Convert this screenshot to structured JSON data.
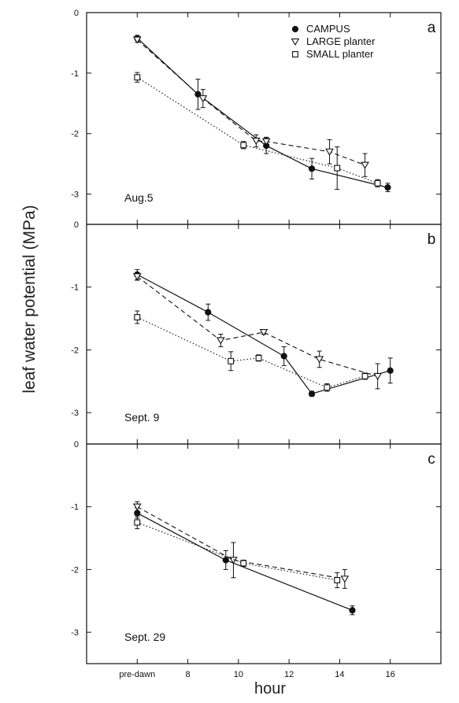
{
  "figure": {
    "ylabel": "leaf water potential (MPa)",
    "xlabel": "hour",
    "legend": [
      {
        "marker": "filled-circle",
        "label": "CAMPUS"
      },
      {
        "marker": "open-triangle-down",
        "label": "LARGE planter"
      },
      {
        "marker": "open-square",
        "label": "SMALL planter"
      }
    ],
    "x_tick_labels": [
      "pre-dawn",
      "8",
      "10",
      "12",
      "14",
      "16"
    ]
  },
  "chart_data": [
    {
      "type": "line",
      "panel_letter": "a",
      "annotation": "Aug.5",
      "xlim": [
        4,
        18
      ],
      "ylim": [
        -3.5,
        0
      ],
      "yticks": [
        0,
        -1,
        -2,
        -3
      ],
      "series": [
        {
          "name": "CAMPUS",
          "marker": "filled-circle",
          "line_style": "solid",
          "points": [
            {
              "x": "pre-dawn",
              "y": -0.42,
              "err": 0.04
            },
            {
              "x": 8.4,
              "y": -1.35,
              "err": 0.25
            },
            {
              "x": 11.1,
              "y": -2.2,
              "err": 0.13
            },
            {
              "x": 12.9,
              "y": -2.58,
              "err": 0.17
            },
            {
              "x": 15.9,
              "y": -2.89,
              "err": 0.07
            }
          ]
        },
        {
          "name": "LARGE planter",
          "marker": "open-triangle-down",
          "line_style": "dashed",
          "points": [
            {
              "x": "pre-dawn",
              "y": -0.45,
              "err": 0.04
            },
            {
              "x": 8.6,
              "y": -1.42,
              "err": 0.15
            },
            {
              "x": 10.7,
              "y": -2.12,
              "err": 0.1
            },
            {
              "x": 11.1,
              "y": -2.13,
              "err": 0.07
            },
            {
              "x": 13.6,
              "y": -2.3,
              "err": 0.2
            },
            {
              "x": 15.0,
              "y": -2.52,
              "err": 0.19
            }
          ]
        },
        {
          "name": "SMALL planter",
          "marker": "open-square",
          "line_style": "dotted",
          "points": [
            {
              "x": "pre-dawn",
              "y": -1.07,
              "err": 0.08
            },
            {
              "x": 10.2,
              "y": -2.19,
              "err": 0.06
            },
            {
              "x": 13.9,
              "y": -2.57,
              "err": 0.35
            },
            {
              "x": 15.5,
              "y": -2.82,
              "err": 0.06
            }
          ]
        }
      ]
    },
    {
      "type": "line",
      "panel_letter": "b",
      "annotation": "Sept. 9",
      "xlim": [
        4,
        18
      ],
      "ylim": [
        -3.5,
        0
      ],
      "yticks": [
        0,
        -1,
        -2,
        -3
      ],
      "series": [
        {
          "name": "CAMPUS",
          "marker": "filled-circle",
          "line_style": "solid",
          "points": [
            {
              "x": "pre-dawn",
              "y": -0.8,
              "err": 0.08
            },
            {
              "x": 8.8,
              "y": -1.4,
              "err": 0.13
            },
            {
              "x": 11.8,
              "y": -2.1,
              "err": 0.15
            },
            {
              "x": 12.9,
              "y": -2.7,
              "err": 0.04
            },
            {
              "x": 16.0,
              "y": -2.33,
              "err": 0.2
            }
          ]
        },
        {
          "name": "LARGE planter",
          "marker": "open-triangle-down",
          "line_style": "dashed",
          "points": [
            {
              "x": "pre-dawn",
              "y": -0.83,
              "err": 0.06
            },
            {
              "x": 9.3,
              "y": -1.85,
              "err": 0.1
            },
            {
              "x": 11.0,
              "y": -1.72,
              "err": 0.03
            },
            {
              "x": 13.2,
              "y": -2.15,
              "err": 0.13
            },
            {
              "x": 15.5,
              "y": -2.42,
              "err": 0.2
            }
          ]
        },
        {
          "name": "SMALL planter",
          "marker": "open-square",
          "line_style": "dotted",
          "points": [
            {
              "x": "pre-dawn",
              "y": -1.48,
              "err": 0.1
            },
            {
              "x": 9.7,
              "y": -2.18,
              "err": 0.15
            },
            {
              "x": 10.8,
              "y": -2.13,
              "err": 0.05
            },
            {
              "x": 13.5,
              "y": -2.6,
              "err": 0.06
            },
            {
              "x": 15.0,
              "y": -2.42,
              "err": 0.05
            }
          ]
        }
      ]
    },
    {
      "type": "line",
      "panel_letter": "c",
      "annotation": "Sept. 29",
      "xlim": [
        4,
        18
      ],
      "ylim": [
        -3.5,
        0
      ],
      "yticks": [
        0,
        -1,
        -2,
        -3
      ],
      "series": [
        {
          "name": "CAMPUS",
          "marker": "filled-circle",
          "line_style": "solid",
          "points": [
            {
              "x": "pre-dawn",
              "y": -1.1,
              "err": 0.08
            },
            {
              "x": 9.5,
              "y": -1.85,
              "err": 0.15
            },
            {
              "x": 14.5,
              "y": -2.65,
              "err": 0.07
            }
          ]
        },
        {
          "name": "LARGE planter",
          "marker": "open-triangle-down",
          "line_style": "dashed",
          "points": [
            {
              "x": "pre-dawn",
              "y": -1.0,
              "err": 0.08
            },
            {
              "x": 9.8,
              "y": -1.85,
              "err": 0.28
            },
            {
              "x": 14.2,
              "y": -2.15,
              "err": 0.15
            }
          ]
        },
        {
          "name": "SMALL planter",
          "marker": "open-square",
          "line_style": "dotted",
          "points": [
            {
              "x": "pre-dawn",
              "y": -1.25,
              "err": 0.1
            },
            {
              "x": 10.2,
              "y": -1.9,
              "err": 0.05
            },
            {
              "x": 13.9,
              "y": -2.17,
              "err": 0.12
            }
          ]
        }
      ]
    }
  ]
}
